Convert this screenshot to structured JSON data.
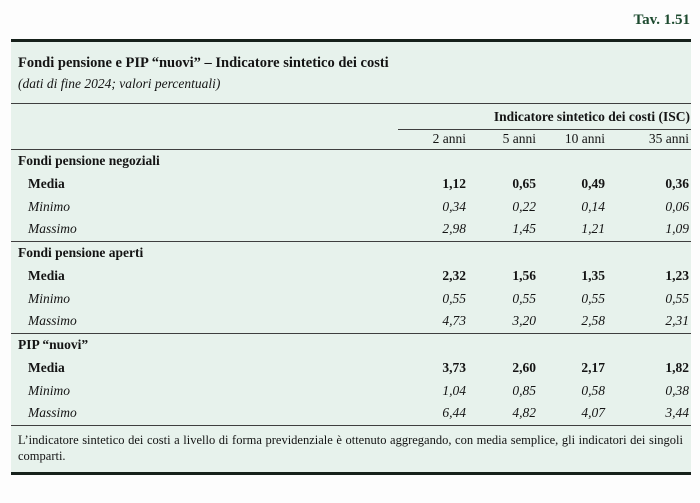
{
  "page": {
    "table_number": "Tav. 1.51",
    "title": "Fondi pensione e PIP “nuovi” – Indicatore sintetico dei costi",
    "subtitle": "(dati di fine 2024; valori percentuali)",
    "footnote": "L’indicatore sintetico dei costi a livello di forma previdenziale è ottenuto aggregando, con media semplice, gli indicatori dei singoli comparti."
  },
  "table": {
    "group_header": "Indicatore sintetico dei costi (ISC)",
    "columns": [
      "2 anni",
      "5 anni",
      "10 anni",
      "35 anni"
    ],
    "sections": [
      {
        "label": "Fondi pensione negoziali",
        "rows": [
          {
            "label": "Media",
            "style": "bold",
            "values": [
              "1,12",
              "0,65",
              "0,49",
              "0,36"
            ]
          },
          {
            "label": "Minimo",
            "style": "italic",
            "values": [
              "0,34",
              "0,22",
              "0,14",
              "0,06"
            ]
          },
          {
            "label": "Massimo",
            "style": "italic",
            "values": [
              "2,98",
              "1,45",
              "1,21",
              "1,09"
            ]
          }
        ]
      },
      {
        "label": "Fondi pensione aperti",
        "rows": [
          {
            "label": "Media",
            "style": "bold",
            "values": [
              "2,32",
              "1,56",
              "1,35",
              "1,23"
            ]
          },
          {
            "label": "Minimo",
            "style": "italic",
            "values": [
              "0,55",
              "0,55",
              "0,55",
              "0,55"
            ]
          },
          {
            "label": "Massimo",
            "style": "italic",
            "values": [
              "4,73",
              "3,20",
              "2,58",
              "2,31"
            ]
          }
        ]
      },
      {
        "label": "PIP “nuovi”",
        "rows": [
          {
            "label": "Media",
            "style": "bold",
            "values": [
              "3,73",
              "2,60",
              "2,17",
              "1,82"
            ]
          },
          {
            "label": "Minimo",
            "style": "italic",
            "values": [
              "1,04",
              "0,85",
              "0,58",
              "0,38"
            ]
          },
          {
            "label": "Massimo",
            "style": "italic",
            "values": [
              "6,44",
              "4,82",
              "4,07",
              "3,44"
            ]
          }
        ]
      }
    ]
  },
  "colors": {
    "panel_background": "#e7f2ec",
    "thick_rule": "#16211b",
    "thin_rule": "#3f3f3f",
    "table_number_green": "#1d4a2f",
    "text": "#141414"
  }
}
